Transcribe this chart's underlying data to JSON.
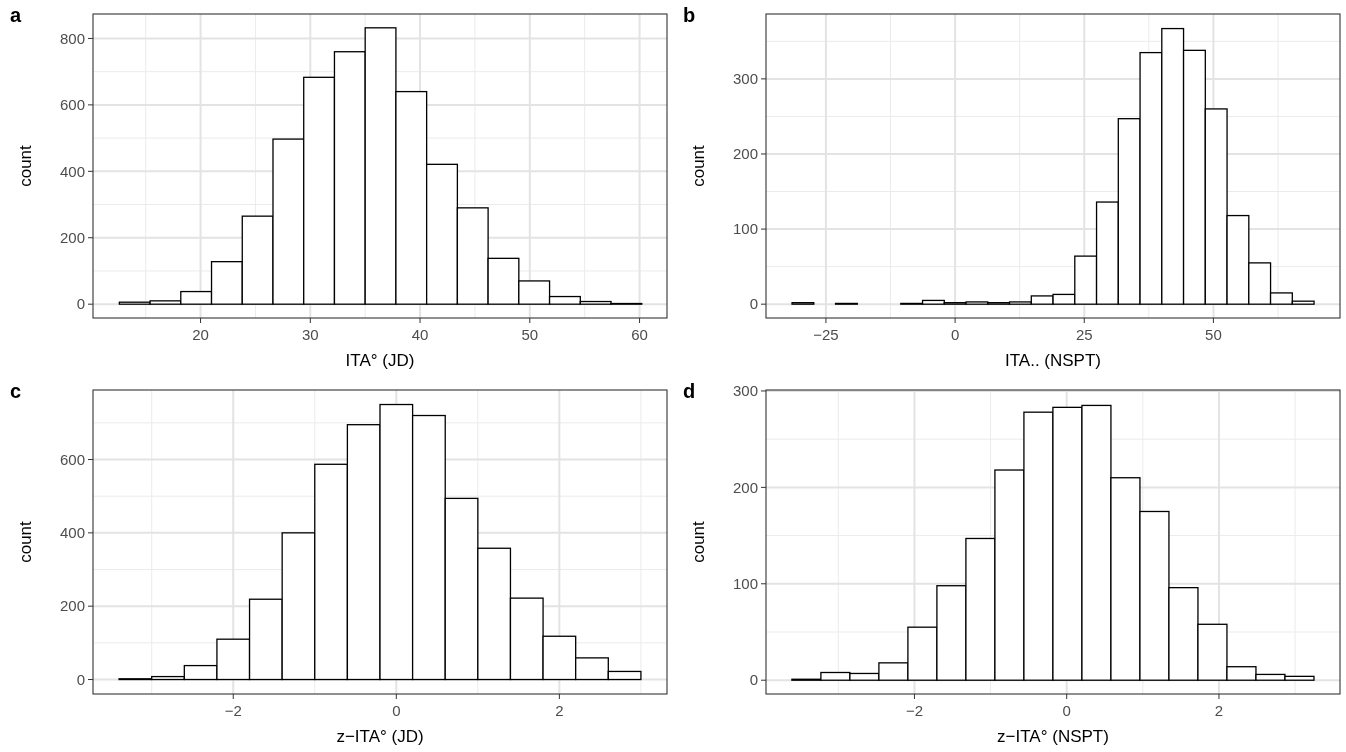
{
  "chart_data": [
    {
      "type": "histogram",
      "title": "a",
      "xlabel": "ITA° (JD)",
      "ylabel": "count",
      "bins": [
        12.6,
        15.4,
        18.2,
        21.0,
        23.8,
        26.6,
        29.4,
        32.2,
        35.0,
        37.8,
        40.6,
        43.4,
        46.2,
        49.0,
        51.8,
        54.6,
        57.4,
        60.2
      ],
      "values": [
        6,
        10,
        38,
        128,
        265,
        497,
        683,
        760,
        832,
        640,
        421,
        290,
        138,
        70,
        23,
        8,
        2
      ],
      "color": "#ffffff",
      "xlim": [
        10.2,
        62.5
      ],
      "xticks": [
        20,
        30,
        40,
        50,
        60
      ],
      "ylim": [
        -41.6,
        873.6
      ],
      "yticks": [
        0,
        200,
        400,
        600,
        800
      ],
      "grid": true
    },
    {
      "type": "histogram",
      "title": "b",
      "xlabel": "ITA.. (NSPT)",
      "ylabel": "count",
      "bins": [
        -31.56,
        -27.35,
        -23.14,
        -18.93,
        -14.72,
        -10.51,
        -6.3,
        -2.09,
        2.12,
        6.33,
        10.54,
        14.75,
        18.96,
        23.17,
        27.38,
        31.59,
        35.8,
        40.01,
        44.22,
        48.43,
        52.64,
        56.85,
        61.06,
        65.27,
        69.48
      ],
      "values": [
        2,
        0,
        1,
        0,
        0,
        1,
        5,
        2,
        3,
        2,
        3,
        11,
        13,
        64,
        136,
        247,
        335,
        367,
        338,
        260,
        118,
        55,
        15,
        4
      ],
      "color": "#ffffff",
      "xlim": [
        -36.6,
        74.5
      ],
      "xticks": [
        -25,
        0,
        25,
        50
      ],
      "ylim": [
        -18.4,
        386.4
      ],
      "yticks": [
        0,
        100,
        200,
        300
      ],
      "grid": true
    },
    {
      "type": "histogram",
      "title": "c",
      "xlabel": "z−ITA° (JD)",
      "ylabel": "count",
      "bins": [
        -3.4,
        -3.0,
        -2.6,
        -2.2,
        -1.8,
        -1.4,
        -1.0,
        -0.6,
        -0.2,
        0.2,
        0.6,
        1.0,
        1.4,
        1.8,
        2.2,
        2.6,
        3.0
      ],
      "values": [
        2,
        8,
        38,
        110,
        219,
        400,
        587,
        695,
        750,
        720,
        494,
        358,
        222,
        118,
        59,
        22
      ],
      "color": "#ffffff",
      "xlim": [
        -3.72,
        3.32
      ],
      "xticks": [
        -2,
        0,
        2
      ],
      "ylim": [
        -39.5,
        789.6
      ],
      "yticks": [
        0,
        200,
        400,
        600
      ],
      "grid": true
    },
    {
      "type": "histogram",
      "title": "d",
      "xlabel": "z−ITA° (NSPT)",
      "ylabel": "count",
      "bins": [
        -3.61,
        -3.229,
        -2.848,
        -2.467,
        -2.086,
        -1.705,
        -1.324,
        -0.943,
        -0.562,
        -0.181,
        0.2,
        0.581,
        0.962,
        1.343,
        1.724,
        2.105,
        2.486,
        2.867,
        3.248
      ],
      "values": [
        1,
        8,
        7,
        18,
        55,
        98,
        147,
        218,
        278,
        283,
        285,
        210,
        175,
        96,
        58,
        14,
        6,
        4
      ],
      "color": "#ffffff",
      "xlim": [
        -3.95,
        3.59
      ],
      "xticks": [
        -2,
        0,
        2
      ],
      "ylim": [
        -14.3,
        301
      ],
      "yticks": [
        0,
        100,
        200,
        300
      ],
      "grid": true
    }
  ]
}
